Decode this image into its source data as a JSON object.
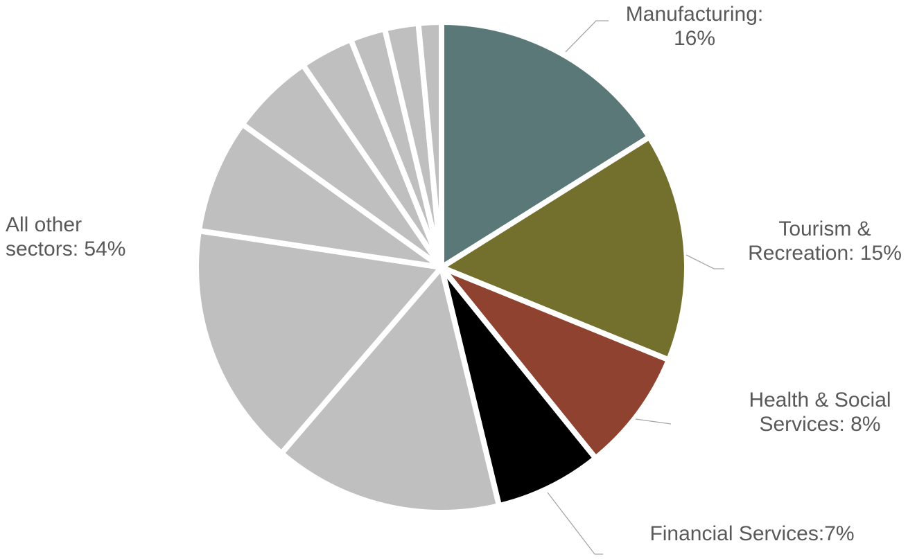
{
  "chart_data": {
    "type": "pie",
    "start_angle_deg": 0,
    "direction": "clockwise",
    "slices": [
      {
        "label_lines": [
          "Manufacturing:",
          "16%"
        ],
        "value": 16,
        "color": "#5A7878",
        "callout": true
      },
      {
        "label_lines": [
          "Tourism &",
          "Recreation: 15%"
        ],
        "value": 15,
        "color": "#73702D",
        "callout": true
      },
      {
        "label_lines": [
          "Health & Social",
          "Services: 8%"
        ],
        "value": 8,
        "color": "#8F4230",
        "callout": true
      },
      {
        "label_lines": [
          "Financial Services:7%"
        ],
        "value": 7,
        "color": "#000000",
        "callout": true
      },
      {
        "label_lines": [],
        "value": 15,
        "color": "#BFBFBF",
        "callout": false
      },
      {
        "label_lines": [],
        "value": 16,
        "color": "#BFBFBF",
        "callout": false
      },
      {
        "label_lines": [],
        "value": 7.5,
        "color": "#BFBFBF",
        "callout": false
      },
      {
        "label_lines": [],
        "value": 5.5,
        "color": "#BFBFBF",
        "callout": false
      },
      {
        "label_lines": [],
        "value": 3.5,
        "color": "#BFBFBF",
        "callout": false
      },
      {
        "label_lines": [],
        "value": 2.3,
        "color": "#BFBFBF",
        "callout": false
      },
      {
        "label_lines": [],
        "value": 2.2,
        "color": "#BFBFBF",
        "callout": false
      },
      {
        "label_lines": [],
        "value": 1.5,
        "color": "#BFBFBF",
        "callout": false
      }
    ],
    "other_label_lines": [
      "All other",
      "sectors: 54%"
    ],
    "colors": {
      "separator": "#FFFFFF",
      "leader": "#A6A6A6",
      "label_text": "#595959",
      "other_label_text": "#000000"
    }
  }
}
